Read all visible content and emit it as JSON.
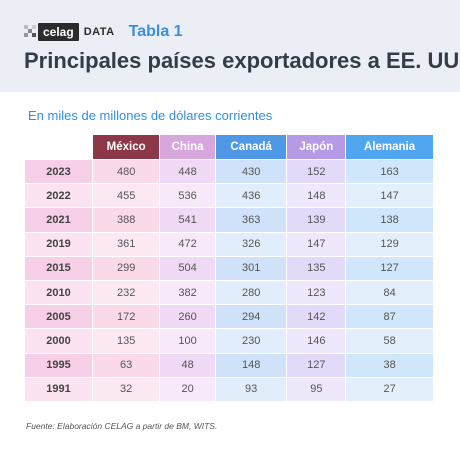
{
  "header": {
    "logo_text": "celag",
    "logo_suffix": "DATA",
    "tabla_label": "Tabla 1",
    "title": "Principales países exportadores a EE. UU."
  },
  "subtitle": "En miles de millones de dólares corrientes",
  "table": {
    "columns": [
      "México",
      "China",
      "Canadá",
      "Japón",
      "Alemania"
    ],
    "column_colors": [
      "#8c3848",
      "#d7a6dc",
      "#4e98e6",
      "#b69ae6",
      "#51a7ef"
    ],
    "rows": [
      {
        "year": "2023",
        "values": [
          "480",
          "448",
          "430",
          "152",
          "163"
        ]
      },
      {
        "year": "2022",
        "values": [
          "455",
          "536",
          "436",
          "148",
          "147"
        ]
      },
      {
        "year": "2021",
        "values": [
          "388",
          "541",
          "363",
          "139",
          "138"
        ]
      },
      {
        "year": "2019",
        "values": [
          "361",
          "472",
          "326",
          "147",
          "129"
        ]
      },
      {
        "year": "2015",
        "values": [
          "299",
          "504",
          "301",
          "135",
          "127"
        ]
      },
      {
        "year": "2010",
        "values": [
          "232",
          "382",
          "280",
          "123",
          "84"
        ]
      },
      {
        "year": "2005",
        "values": [
          "172",
          "260",
          "294",
          "142",
          "87"
        ]
      },
      {
        "year": "2000",
        "values": [
          "135",
          "100",
          "230",
          "146",
          "58"
        ]
      },
      {
        "year": "1995",
        "values": [
          "63",
          "48",
          "148",
          "127",
          "38"
        ]
      },
      {
        "year": "1991",
        "values": [
          "32",
          "20",
          "93",
          "95",
          "27"
        ]
      }
    ]
  },
  "source": "Fuente: Elaboración CELAG a partir de BM, WITS."
}
